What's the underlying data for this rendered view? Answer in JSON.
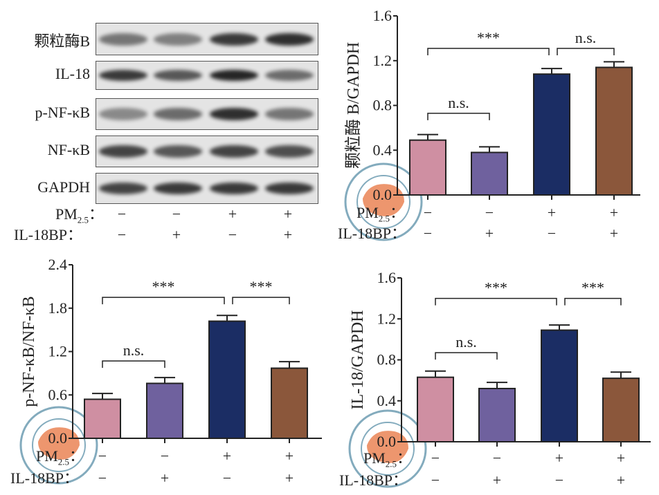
{
  "blot": {
    "rows": [
      "颗粒酶B",
      "IL-18",
      "p-NF-κB",
      "NF-κB",
      "GAPDH"
    ],
    "pm_label": "PM",
    "pm_sub": "2.5",
    "pm_colon": "：",
    "il18bp_label": "IL-18BP：",
    "pm_signs": [
      "−",
      "−",
      "+",
      "+"
    ],
    "il18bp_signs": [
      "−",
      "+",
      "−",
      "+"
    ]
  },
  "colors": [
    "#cf8fa2",
    "#6f619e",
    "#1b2d64",
    "#8b573b"
  ],
  "chart_data": [
    {
      "type": "bar",
      "ylabel": "颗粒酶 B/GAPDH",
      "ylim": [
        0,
        1.6
      ],
      "yticks": [
        "0.0",
        "0.4",
        "0.8",
        "1.2",
        "1.6"
      ],
      "categories": [
        "PM2.5−/IL-18BP−",
        "PM2.5−/IL-18BP+",
        "PM2.5+/IL-18BP−",
        "PM2.5+/IL-18BP+"
      ],
      "values": [
        0.49,
        0.38,
        1.08,
        1.14
      ],
      "errors": [
        0.05,
        0.05,
        0.05,
        0.05
      ],
      "pm_signs": [
        "−",
        "−",
        "+",
        "+"
      ],
      "il18bp_signs": [
        "−",
        "+",
        "−",
        "+"
      ],
      "annotations": [
        {
          "from": 0,
          "to": 2,
          "y": 1.31,
          "label": "***"
        },
        {
          "from": 2,
          "to": 3,
          "y": 1.31,
          "label": "n.s."
        },
        {
          "from": 0,
          "to": 1,
          "y": 0.73,
          "label": "n.s."
        }
      ]
    },
    {
      "type": "bar",
      "ylabel": "p-NF-κB/NF-κB",
      "ylim": [
        0,
        2.4
      ],
      "yticks": [
        "0.0",
        "0.6",
        "1.2",
        "1.8",
        "2.4"
      ],
      "categories": [
        "PM2.5−/IL-18BP−",
        "PM2.5−/IL-18BP+",
        "PM2.5+/IL-18BP−",
        "PM2.5+/IL-18BP+"
      ],
      "values": [
        0.54,
        0.76,
        1.62,
        0.97
      ],
      "errors": [
        0.08,
        0.08,
        0.08,
        0.09
      ],
      "pm_signs": [
        "−",
        "−",
        "+",
        "+"
      ],
      "il18bp_signs": [
        "−",
        "+",
        "−",
        "+"
      ],
      "annotations": [
        {
          "from": 0,
          "to": 2,
          "y": 1.95,
          "label": "***"
        },
        {
          "from": 2,
          "to": 3,
          "y": 1.95,
          "label": "***"
        },
        {
          "from": 0,
          "to": 1,
          "y": 1.07,
          "label": "n.s."
        }
      ]
    },
    {
      "type": "bar",
      "ylabel": "IL-18/GAPDH",
      "ylim": [
        0,
        1.6
      ],
      "yticks": [
        "0.0",
        "0.4",
        "0.8",
        "1.2",
        "1.6"
      ],
      "categories": [
        "PM2.5−/IL-18BP−",
        "PM2.5−/IL-18BP+",
        "PM2.5+/IL-18BP−",
        "PM2.5+/IL-18BP+"
      ],
      "values": [
        0.63,
        0.52,
        1.09,
        0.62
      ],
      "errors": [
        0.06,
        0.06,
        0.05,
        0.06
      ],
      "pm_signs": [
        "−",
        "−",
        "+",
        "+"
      ],
      "il18bp_signs": [
        "−",
        "+",
        "−",
        "+"
      ],
      "annotations": [
        {
          "from": 0,
          "to": 2,
          "y": 1.4,
          "label": "***"
        },
        {
          "from": 2,
          "to": 3,
          "y": 1.4,
          "label": "***"
        },
        {
          "from": 0,
          "to": 1,
          "y": 0.87,
          "label": "n.s."
        }
      ]
    }
  ]
}
